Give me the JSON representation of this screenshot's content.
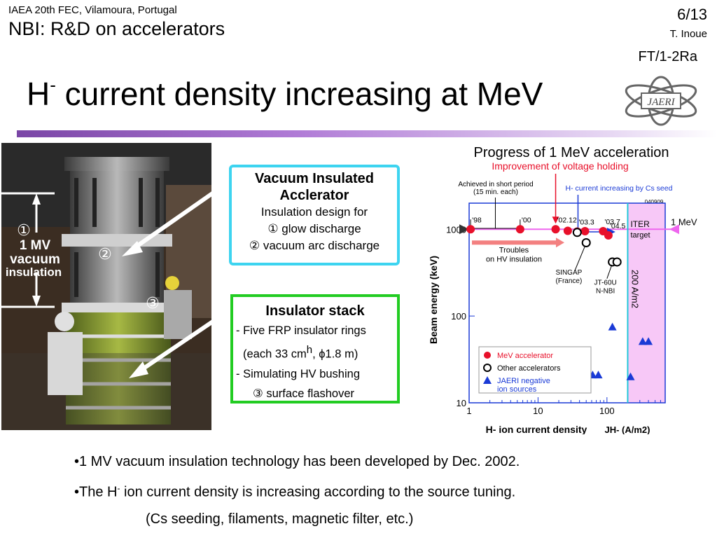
{
  "header": {
    "conference": "IAEA 20th FEC, Vilamoura, Portugal",
    "section": "NBI: R&D on accelerators",
    "page": "6/13",
    "author": "T. Inoue",
    "paper_id": "FT/1-2Ra",
    "title_prefix": "H",
    "title_sup": "-",
    "title_rest": " current density increasing at MeV",
    "logo_text": "JAERI"
  },
  "photo": {
    "marker1": "①",
    "marker2": "②",
    "marker3": "③",
    "label_line1": "1 MV",
    "label_line2": "vacuum",
    "label_line3": "insulation"
  },
  "box1": {
    "heading1": "Vacuum Insulated",
    "heading2": "Acclerator",
    "line1": "Insulation design for",
    "line2": "① glow discharge",
    "line3": "② vacuum arc discharge"
  },
  "box2": {
    "heading": "Insulator stack",
    "line1": "- Five FRP insulator rings",
    "line2a": "(each 33 cm",
    "line2sup": "h",
    "line2b": ", ϕ1.8 m)",
    "line3": "- Simulating HV bushing",
    "line4": "③ surface flashover"
  },
  "chart_data": {
    "type": "scatter",
    "title": "Progress of 1 MeV acceleration",
    "subtitle": "Improvement of voltage holding",
    "xlabel": "H- ion current density",
    "xunit": "JH- (A/m2)",
    "ylabel": "Beam energy (keV)",
    "x_scale": "log",
    "y_scale": "log",
    "xlim": [
      1,
      700
    ],
    "ylim": [
      10,
      2000
    ],
    "x_ticks": [
      "1",
      "10",
      "100"
    ],
    "y_ticks": [
      "10",
      "100",
      "1000"
    ],
    "series": [
      {
        "name": "MeV accelerator",
        "color": "#e8102a",
        "marker": "filled-circle",
        "points": [
          {
            "x": 1.05,
            "y": 1000,
            "label": "'98"
          },
          {
            "x": 5.5,
            "y": 1000,
            "label": "'00"
          },
          {
            "x": 18,
            "y": 1000,
            "label": "'02.12"
          },
          {
            "x": 27,
            "y": 960,
            "label": ""
          },
          {
            "x": 37,
            "y": 940,
            "label": "'03.3"
          },
          {
            "x": 48,
            "y": 950,
            "label": ""
          },
          {
            "x": 88,
            "y": 950,
            "label": "'03.7"
          },
          {
            "x": 105,
            "y": 850,
            "label": "'04.5"
          }
        ]
      },
      {
        "name": "Other accelerators",
        "color": "#000000",
        "marker": "open-circle",
        "points": [
          {
            "x": 37,
            "y": 920,
            "label": ""
          },
          {
            "x": 50,
            "y": 700,
            "label": "SINGAP (France)"
          },
          {
            "x": 120,
            "y": 420,
            "label": "JT-60U N-NBI"
          },
          {
            "x": 140,
            "y": 420,
            "label": ""
          }
        ]
      },
      {
        "name": "JAERI negative ion sources",
        "color": "#1a3ad6",
        "marker": "triangle",
        "points": [
          {
            "x": 120,
            "y": 75
          },
          {
            "x": 62,
            "y": 21
          },
          {
            "x": 75,
            "y": 21
          },
          {
            "x": 220,
            "y": 20
          },
          {
            "x": 330,
            "y": 51
          },
          {
            "x": 400,
            "y": 51
          }
        ]
      }
    ],
    "annotations": {
      "achieved": "Achieved in short period",
      "achieved2": "(15 min. each)",
      "cs_seed": "H- current increasing by Cs seed",
      "iter": "ITER",
      "iter2": "target",
      "date": "040909",
      "mev_line": "1 MeV",
      "vline_label": "200 A/m2",
      "troubles1": "Troubles",
      "troubles2": "on HV insulation",
      "singap1": "SINGAP",
      "singap2": "(France)",
      "jt1": "JT-60U",
      "jt2": "N-NBI"
    },
    "legend_position": "bottom-left",
    "reference_lines": {
      "y": 1000,
      "x": 200
    }
  },
  "bullets": {
    "b1": "•1 MV vacuum insulation technology has been developed by Dec. 2002.",
    "b2a": "•The H",
    "b2sup": "-",
    "b2b": " ion current density is increasing according to the source tuning.",
    "b3": "(Cs seeding, filaments, magnetic filter, etc.)"
  },
  "colors": {
    "accent_purple": "#8b4fc0",
    "box1_border": "#3dd4f0",
    "box2_border": "#22cc22",
    "red": "#e8102a",
    "blue": "#1a3ad6",
    "magenta": "#ee66ee"
  }
}
